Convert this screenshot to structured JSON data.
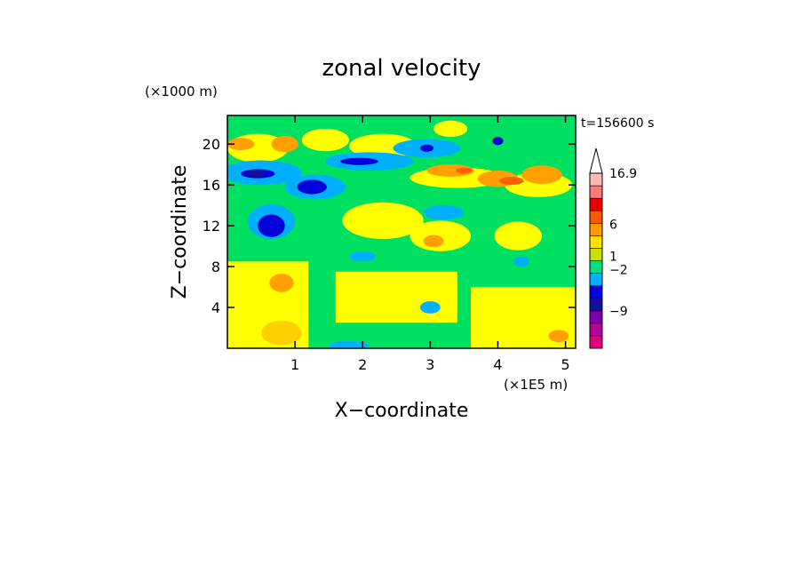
{
  "chart_data": {
    "type": "heatmap",
    "title": "zonal velocity",
    "xlabel": "X−coordinate",
    "ylabel": "Z−coordinate",
    "x_scale_label": "(×1E5 m)",
    "y_scale_label": "(×1000 m)",
    "time_label": "t=156600 s",
    "xlim": [
      0,
      5.15
    ],
    "ylim": [
      0,
      22.8
    ],
    "x_ticks": [
      "1",
      "2",
      "3",
      "4",
      "5"
    ],
    "x_tick_values": [
      1,
      2,
      3,
      4,
      5
    ],
    "y_ticks": [
      "4",
      "8",
      "12",
      "16",
      "20"
    ],
    "y_tick_values": [
      4,
      8,
      12,
      16,
      20
    ],
    "colorbar": {
      "labels": [
        "16.9",
        "6",
        "1",
        "−2",
        "−9"
      ],
      "label_values": [
        16.9,
        6,
        1,
        -2,
        -9
      ],
      "colors": [
        "#e0007f",
        "#b8009a",
        "#7a00a8",
        "#1010a0",
        "#0000d8",
        "#00b0ff",
        "#00e080",
        "#c8e000",
        "#ffe000",
        "#ff9a00",
        "#ff5a00",
        "#e80000",
        "#ff7a7a",
        "#ffb8b8"
      ],
      "max_arrow": true
    },
    "background_color": "#00e060",
    "regions": [
      {
        "kind": "rect",
        "x0": 0.0,
        "x1": 1.2,
        "z0": 0.0,
        "z1": 8.5,
        "color": "#ffff00"
      },
      {
        "kind": "rect",
        "x0": 1.6,
        "x1": 3.4,
        "z0": 2.5,
        "z1": 7.5,
        "color": "#ffff00"
      },
      {
        "kind": "rect",
        "x0": 3.6,
        "x1": 5.15,
        "z0": 0.0,
        "z1": 6.0,
        "color": "#ffff00"
      },
      {
        "kind": "ellipse",
        "x": 2.3,
        "z": 12.5,
        "rx": 0.6,
        "rz": 1.8,
        "color": "#ffff00"
      },
      {
        "kind": "ellipse",
        "x": 2.3,
        "z": 19.8,
        "rx": 0.5,
        "rz": 1.2,
        "color": "#ffff00"
      },
      {
        "kind": "ellipse",
        "x": 3.15,
        "z": 11.0,
        "rx": 0.45,
        "rz": 1.5,
        "color": "#ffff00"
      },
      {
        "kind": "ellipse",
        "x": 4.3,
        "z": 11.0,
        "rx": 0.35,
        "rz": 1.4,
        "color": "#ffff00"
      },
      {
        "kind": "ellipse",
        "x": 4.6,
        "z": 16.0,
        "rx": 0.5,
        "rz": 1.2,
        "color": "#ffff00"
      },
      {
        "kind": "ellipse",
        "x": 3.4,
        "z": 16.7,
        "rx": 0.7,
        "rz": 1.0,
        "color": "#ffff00"
      },
      {
        "kind": "ellipse",
        "x": 0.45,
        "z": 19.6,
        "rx": 0.45,
        "rz": 1.4,
        "color": "#ffff00"
      },
      {
        "kind": "ellipse",
        "x": 1.45,
        "z": 20.4,
        "rx": 0.35,
        "rz": 1.1,
        "color": "#ffff00"
      },
      {
        "kind": "ellipse",
        "x": 3.3,
        "z": 21.5,
        "rx": 0.25,
        "rz": 0.8,
        "color": "#ffff00"
      },
      {
        "kind": "ellipse",
        "x": 4.7,
        "z": 2.0,
        "rx": 0.5,
        "rz": 2.0,
        "color": "#ffff00"
      },
      {
        "kind": "ellipse",
        "x": 0.8,
        "z": 1.5,
        "rx": 0.3,
        "rz": 1.2,
        "color": "#ffd000"
      },
      {
        "kind": "ellipse",
        "x": 4.65,
        "z": 17.0,
        "rx": 0.3,
        "rz": 0.9,
        "color": "#ffa000"
      },
      {
        "kind": "ellipse",
        "x": 4.0,
        "z": 16.6,
        "rx": 0.3,
        "rz": 0.8,
        "color": "#ffa000"
      },
      {
        "kind": "ellipse",
        "x": 3.3,
        "z": 17.4,
        "rx": 0.35,
        "rz": 0.6,
        "color": "#ffa000"
      },
      {
        "kind": "ellipse",
        "x": 3.05,
        "z": 10.5,
        "rx": 0.15,
        "rz": 0.6,
        "color": "#ffa000"
      },
      {
        "kind": "ellipse",
        "x": 0.8,
        "z": 6.4,
        "rx": 0.18,
        "rz": 0.9,
        "color": "#ffa000"
      },
      {
        "kind": "ellipse",
        "x": 0.85,
        "z": 20.0,
        "rx": 0.2,
        "rz": 0.8,
        "color": "#ffa000"
      },
      {
        "kind": "ellipse",
        "x": 0.2,
        "z": 20.0,
        "rx": 0.2,
        "rz": 0.6,
        "color": "#ffa000"
      },
      {
        "kind": "ellipse",
        "x": 4.9,
        "z": 1.2,
        "rx": 0.15,
        "rz": 0.6,
        "color": "#ffa000"
      },
      {
        "kind": "ellipse",
        "x": 4.2,
        "z": 16.4,
        "rx": 0.18,
        "rz": 0.4,
        "color": "#ff6000"
      },
      {
        "kind": "ellipse",
        "x": 3.5,
        "z": 17.4,
        "rx": 0.12,
        "rz": 0.3,
        "color": "#ff6000"
      },
      {
        "kind": "ellipse",
        "x": 0.5,
        "z": 17.2,
        "rx": 0.6,
        "rz": 1.2,
        "color": "#00b0ff"
      },
      {
        "kind": "ellipse",
        "x": 0.65,
        "z": 12.4,
        "rx": 0.35,
        "rz": 1.7,
        "color": "#00b0ff"
      },
      {
        "kind": "ellipse",
        "x": 1.3,
        "z": 15.8,
        "rx": 0.45,
        "rz": 1.2,
        "color": "#00b0ff"
      },
      {
        "kind": "ellipse",
        "x": 2.1,
        "z": 18.3,
        "rx": 0.65,
        "rz": 0.9,
        "color": "#00b0ff"
      },
      {
        "kind": "ellipse",
        "x": 2.95,
        "z": 19.6,
        "rx": 0.5,
        "rz": 0.9,
        "color": "#00b0ff"
      },
      {
        "kind": "ellipse",
        "x": 3.2,
        "z": 13.3,
        "rx": 0.3,
        "rz": 0.7,
        "color": "#00b0ff"
      },
      {
        "kind": "ellipse",
        "x": 4.35,
        "z": 8.5,
        "rx": 0.12,
        "rz": 0.5,
        "color": "#00b0ff"
      },
      {
        "kind": "ellipse",
        "x": 3.0,
        "z": 4.0,
        "rx": 0.15,
        "rz": 0.6,
        "color": "#00b0ff"
      },
      {
        "kind": "ellipse",
        "x": 1.8,
        "z": 0.3,
        "rx": 0.3,
        "rz": 0.4,
        "color": "#00b0ff"
      },
      {
        "kind": "ellipse",
        "x": 2.0,
        "z": 9.0,
        "rx": 0.2,
        "rz": 0.5,
        "color": "#00b0ff"
      },
      {
        "kind": "ellipse",
        "x": 0.45,
        "z": 17.1,
        "rx": 0.25,
        "rz": 0.45,
        "color": "#0000d8"
      },
      {
        "kind": "ellipse",
        "x": 0.65,
        "z": 12.0,
        "rx": 0.2,
        "rz": 1.1,
        "color": "#0000d8"
      },
      {
        "kind": "ellipse",
        "x": 1.25,
        "z": 15.8,
        "rx": 0.22,
        "rz": 0.7,
        "color": "#0000d8"
      },
      {
        "kind": "ellipse",
        "x": 1.95,
        "z": 18.3,
        "rx": 0.28,
        "rz": 0.35,
        "color": "#0000d8"
      },
      {
        "kind": "ellipse",
        "x": 2.95,
        "z": 19.6,
        "rx": 0.1,
        "rz": 0.35,
        "color": "#0000d8"
      },
      {
        "kind": "ellipse",
        "x": 4.0,
        "z": 20.3,
        "rx": 0.08,
        "rz": 0.4,
        "color": "#0000d8"
      },
      {
        "kind": "ellipse",
        "x": 0.42,
        "z": 17.1,
        "rx": 0.15,
        "rz": 0.28,
        "color": "#101090"
      }
    ]
  }
}
